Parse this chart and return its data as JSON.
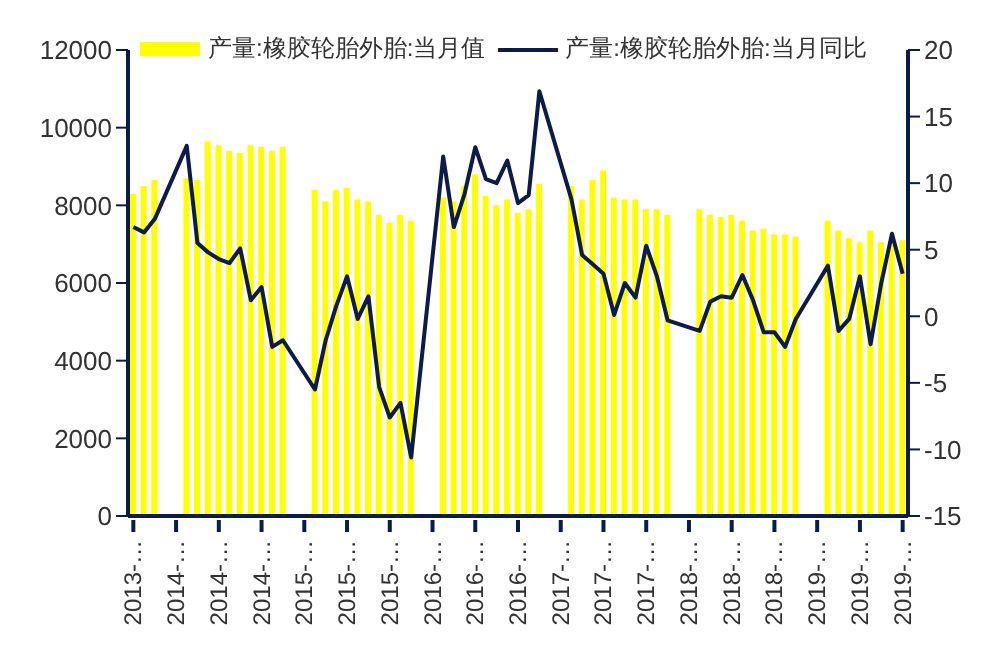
{
  "chart_data": {
    "type": "bar",
    "categories": [
      "2013-…",
      null,
      null,
      null,
      "2014-…",
      null,
      null,
      null,
      "2014-…",
      null,
      null,
      null,
      "2014-…",
      null,
      null,
      null,
      "2015-…",
      null,
      null,
      null,
      "2015-…",
      null,
      null,
      null,
      "2015-…",
      null,
      null,
      null,
      "2016-…",
      null,
      null,
      null,
      "2016-…",
      null,
      null,
      null,
      "2016-…",
      null,
      null,
      null,
      "2017-…",
      null,
      null,
      null,
      "2017-…",
      null,
      null,
      null,
      "2017-…",
      null,
      null,
      null,
      "2018-…",
      null,
      null,
      null,
      "2018-…",
      null,
      null,
      null,
      "2018-…",
      null,
      null,
      null,
      "2019-…",
      null,
      null,
      null,
      "2019-…",
      null,
      null,
      null,
      "2019-…"
    ],
    "series": [
      {
        "name": "产量:橡胶轮胎外胎:当月值",
        "color": "#ffff00",
        "values": [
          8300,
          8500,
          8650,
          null,
          null,
          8700,
          8650,
          9650,
          9550,
          9400,
          9350,
          9550,
          9500,
          9400,
          9500,
          null,
          null,
          8400,
          8100,
          8400,
          8450,
          8150,
          8100,
          7750,
          7550,
          7750,
          7600,
          null,
          null,
          8200,
          8100,
          8500,
          8800,
          8250,
          8000,
          8150,
          7800,
          7900,
          8550,
          null,
          null,
          8500,
          8150,
          8650,
          8900,
          8200,
          8150,
          8150,
          7900,
          7900,
          7750,
          null,
          null,
          7900,
          7750,
          7700,
          7750,
          7600,
          7350,
          7400,
          7250,
          7250,
          7200,
          null,
          null,
          7600,
          7350,
          7150,
          7050,
          7350,
          7050,
          7100,
          7100
        ]
      },
      {
        "name": "产量:橡胶轮胎外胎:当月同比",
        "type": "line",
        "axis": "y2",
        "color": "#0d1b4b",
        "values": [
          6.7,
          6.3,
          7.3,
          null,
          null,
          12.8,
          5.5,
          4.8,
          4.3,
          4.0,
          5.1,
          1.2,
          2.2,
          -2.3,
          -1.8,
          null,
          null,
          -5.5,
          -1.8,
          0.8,
          3.0,
          -0.2,
          1.5,
          -5.3,
          -7.6,
          -6.5,
          -10.6,
          null,
          null,
          12.0,
          6.7,
          9.2,
          12.7,
          10.3,
          10.0,
          11.7,
          8.5,
          9.1,
          16.9,
          null,
          null,
          8.8,
          4.6,
          3.9,
          3.2,
          0.1,
          2.5,
          1.4,
          5.3,
          3.0,
          -0.3,
          null,
          null,
          -1.1,
          1.1,
          1.5,
          1.4,
          3.1,
          1.2,
          -1.2,
          -1.2,
          -2.3,
          -0.2,
          null,
          null,
          3.8,
          -1.1,
          -0.2,
          3.0,
          -2.1,
          2.5,
          6.2,
          3.2
        ]
      }
    ],
    "ylim": [
      0,
      12000
    ],
    "yticks": [
      0,
      2000,
      4000,
      6000,
      8000,
      10000,
      12000
    ],
    "y2lim": [
      -15,
      20
    ],
    "y2ticks": [
      -15,
      -10,
      -5,
      0,
      5,
      10,
      15,
      20
    ],
    "legend": "top",
    "grid": false
  }
}
